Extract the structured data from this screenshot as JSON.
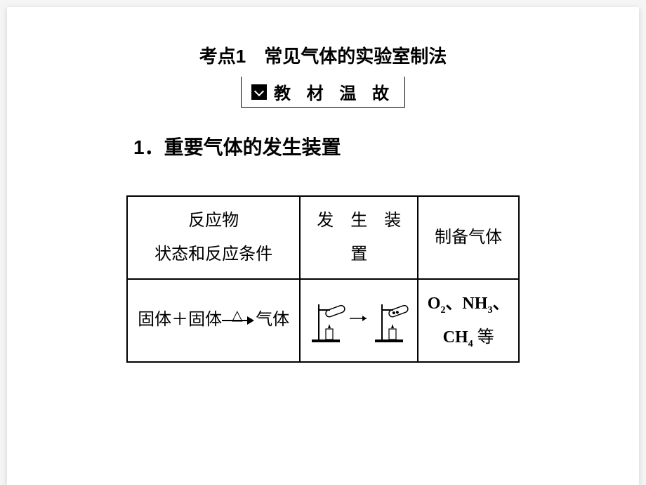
{
  "title": "考点1　常见气体的实验室制法",
  "banner": "教 材 温 故",
  "section_heading": "1．重要气体的发生装置",
  "table": {
    "headers": {
      "col1_line1": "反应物",
      "col1_line2": "状态和反应条件",
      "col2_line1": "发　生　装",
      "col2_line2": "置",
      "col3": "制备气体"
    },
    "row": {
      "reactant_left": "固体＋固体",
      "reactant_right": "气体",
      "triangle": "△",
      "gases_html": "O<sub>2</sub>、NH<sub>3</sub>、<br>CH<sub>4</sub> <span class='cn'>等</span>"
    }
  },
  "colors": {
    "page_bg": "#ffffff",
    "outer_bg": "#f5f5f5",
    "text": "#000000",
    "border": "#000000"
  }
}
